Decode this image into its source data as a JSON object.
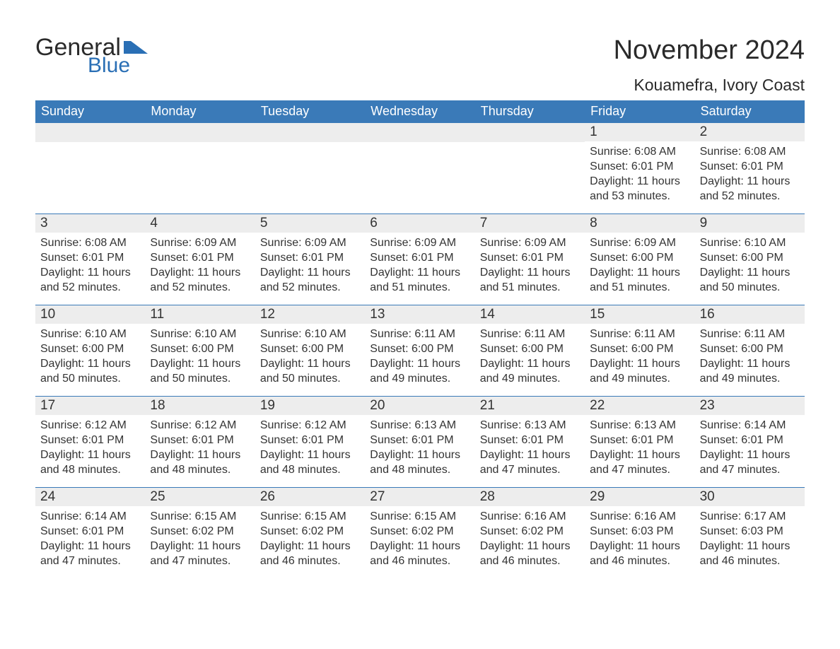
{
  "logo": {
    "text1": "General",
    "text2": "Blue",
    "flag_color": "#2a6fb5"
  },
  "title": "November 2024",
  "location": "Kouamefra, Ivory Coast",
  "colors": {
    "header_bg": "#3a7ab8",
    "header_fg": "#ffffff",
    "daynum_bg": "#ededed",
    "text": "#333333",
    "rule": "#3a7ab8"
  },
  "daysOfWeek": [
    "Sunday",
    "Monday",
    "Tuesday",
    "Wednesday",
    "Thursday",
    "Friday",
    "Saturday"
  ],
  "weeks": [
    [
      null,
      null,
      null,
      null,
      null,
      {
        "n": "1",
        "sr": "6:08 AM",
        "ss": "6:01 PM",
        "d1": "11 hours",
        "d2": "53 minutes."
      },
      {
        "n": "2",
        "sr": "6:08 AM",
        "ss": "6:01 PM",
        "d1": "11 hours",
        "d2": "52 minutes."
      }
    ],
    [
      {
        "n": "3",
        "sr": "6:08 AM",
        "ss": "6:01 PM",
        "d1": "11 hours",
        "d2": "52 minutes."
      },
      {
        "n": "4",
        "sr": "6:09 AM",
        "ss": "6:01 PM",
        "d1": "11 hours",
        "d2": "52 minutes."
      },
      {
        "n": "5",
        "sr": "6:09 AM",
        "ss": "6:01 PM",
        "d1": "11 hours",
        "d2": "52 minutes."
      },
      {
        "n": "6",
        "sr": "6:09 AM",
        "ss": "6:01 PM",
        "d1": "11 hours",
        "d2": "51 minutes."
      },
      {
        "n": "7",
        "sr": "6:09 AM",
        "ss": "6:01 PM",
        "d1": "11 hours",
        "d2": "51 minutes."
      },
      {
        "n": "8",
        "sr": "6:09 AM",
        "ss": "6:00 PM",
        "d1": "11 hours",
        "d2": "51 minutes."
      },
      {
        "n": "9",
        "sr": "6:10 AM",
        "ss": "6:00 PM",
        "d1": "11 hours",
        "d2": "50 minutes."
      }
    ],
    [
      {
        "n": "10",
        "sr": "6:10 AM",
        "ss": "6:00 PM",
        "d1": "11 hours",
        "d2": "50 minutes."
      },
      {
        "n": "11",
        "sr": "6:10 AM",
        "ss": "6:00 PM",
        "d1": "11 hours",
        "d2": "50 minutes."
      },
      {
        "n": "12",
        "sr": "6:10 AM",
        "ss": "6:00 PM",
        "d1": "11 hours",
        "d2": "50 minutes."
      },
      {
        "n": "13",
        "sr": "6:11 AM",
        "ss": "6:00 PM",
        "d1": "11 hours",
        "d2": "49 minutes."
      },
      {
        "n": "14",
        "sr": "6:11 AM",
        "ss": "6:00 PM",
        "d1": "11 hours",
        "d2": "49 minutes."
      },
      {
        "n": "15",
        "sr": "6:11 AM",
        "ss": "6:00 PM",
        "d1": "11 hours",
        "d2": "49 minutes."
      },
      {
        "n": "16",
        "sr": "6:11 AM",
        "ss": "6:00 PM",
        "d1": "11 hours",
        "d2": "49 minutes."
      }
    ],
    [
      {
        "n": "17",
        "sr": "6:12 AM",
        "ss": "6:01 PM",
        "d1": "11 hours",
        "d2": "48 minutes."
      },
      {
        "n": "18",
        "sr": "6:12 AM",
        "ss": "6:01 PM",
        "d1": "11 hours",
        "d2": "48 minutes."
      },
      {
        "n": "19",
        "sr": "6:12 AM",
        "ss": "6:01 PM",
        "d1": "11 hours",
        "d2": "48 minutes."
      },
      {
        "n": "20",
        "sr": "6:13 AM",
        "ss": "6:01 PM",
        "d1": "11 hours",
        "d2": "48 minutes."
      },
      {
        "n": "21",
        "sr": "6:13 AM",
        "ss": "6:01 PM",
        "d1": "11 hours",
        "d2": "47 minutes."
      },
      {
        "n": "22",
        "sr": "6:13 AM",
        "ss": "6:01 PM",
        "d1": "11 hours",
        "d2": "47 minutes."
      },
      {
        "n": "23",
        "sr": "6:14 AM",
        "ss": "6:01 PM",
        "d1": "11 hours",
        "d2": "47 minutes."
      }
    ],
    [
      {
        "n": "24",
        "sr": "6:14 AM",
        "ss": "6:01 PM",
        "d1": "11 hours",
        "d2": "47 minutes."
      },
      {
        "n": "25",
        "sr": "6:15 AM",
        "ss": "6:02 PM",
        "d1": "11 hours",
        "d2": "47 minutes."
      },
      {
        "n": "26",
        "sr": "6:15 AM",
        "ss": "6:02 PM",
        "d1": "11 hours",
        "d2": "46 minutes."
      },
      {
        "n": "27",
        "sr": "6:15 AM",
        "ss": "6:02 PM",
        "d1": "11 hours",
        "d2": "46 minutes."
      },
      {
        "n": "28",
        "sr": "6:16 AM",
        "ss": "6:02 PM",
        "d1": "11 hours",
        "d2": "46 minutes."
      },
      {
        "n": "29",
        "sr": "6:16 AM",
        "ss": "6:03 PM",
        "d1": "11 hours",
        "d2": "46 minutes."
      },
      {
        "n": "30",
        "sr": "6:17 AM",
        "ss": "6:03 PM",
        "d1": "11 hours",
        "d2": "46 minutes."
      }
    ]
  ],
  "labels": {
    "sunrise": "Sunrise: ",
    "sunset": "Sunset: ",
    "daylight": "Daylight: ",
    "and": "and "
  }
}
